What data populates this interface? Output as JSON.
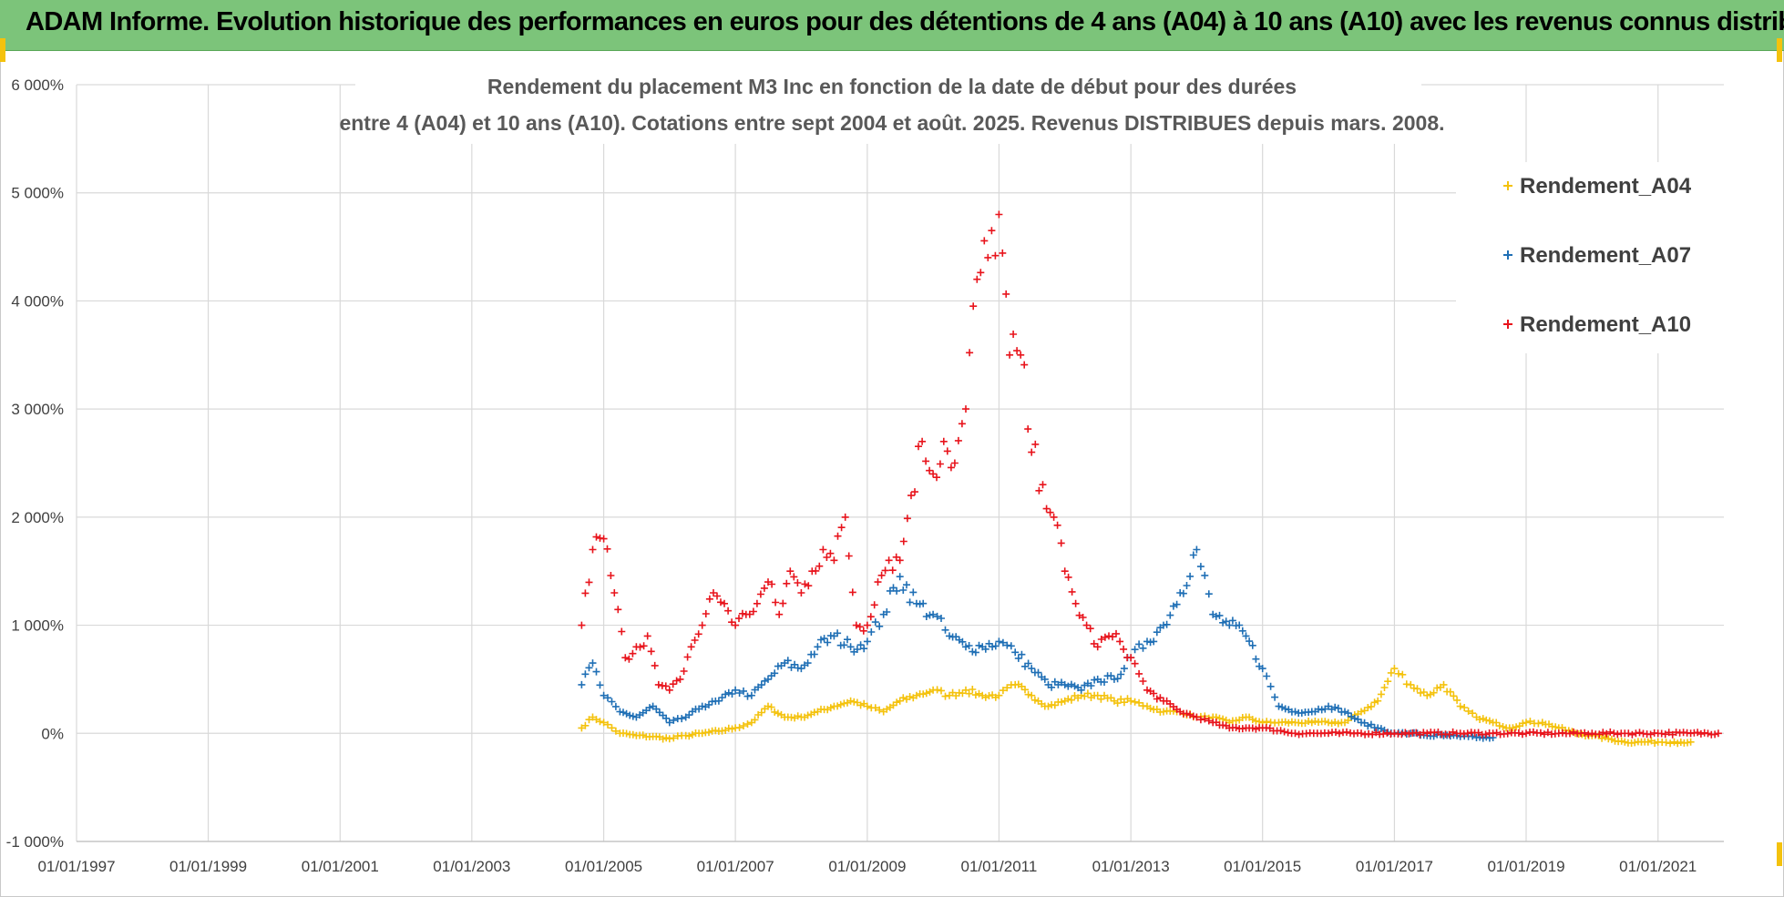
{
  "banner": {
    "title": "ADAM Informe. Evolution historique des performances en euros pour des détentions de 4 ans (A04) à 10 ans (A10) avec les revenus connus distribués"
  },
  "colors": {
    "banner": "#7cc47a",
    "A04": "#f4c20d",
    "A07": "#1f6fb5",
    "A10": "#e8141c",
    "grid": "#d9d9d9"
  },
  "chart_data": {
    "type": "scatter",
    "title": [
      "Rendement du placement M3 Inc en fonction de la date de début pour des durées",
      "entre 4 (A04) et 10 ans (A10). Cotations entre sept 2004 et août. 2025. Revenus DISTRIBUES depuis mars. 2008."
    ],
    "xlabel": "",
    "ylabel": "",
    "x_range": [
      "1997-01-01",
      "2022-01-01"
    ],
    "x_ticks": [
      "01/01/1997",
      "01/01/1999",
      "01/01/2001",
      "01/01/2003",
      "01/01/2005",
      "01/01/2007",
      "01/01/2009",
      "01/01/2011",
      "01/01/2013",
      "01/01/2015",
      "01/01/2017",
      "01/01/2019",
      "01/01/2021"
    ],
    "ylim": [
      -1000,
      6000
    ],
    "y_ticks": [
      "-1 000%",
      "0%",
      "1 000%",
      "2 000%",
      "3 000%",
      "4 000%",
      "5 000%",
      "6 000%"
    ],
    "grid": true,
    "marker": "+",
    "legend": {
      "placement": "right",
      "entries": [
        "Rendement_A04",
        "Rendement_A07",
        "Rendement_A10"
      ]
    },
    "series": [
      {
        "name": "Rendement_A04",
        "x": [
          "2004-09-01",
          "2004-11-01",
          "2005-01-01",
          "2005-04-01",
          "2005-07-01",
          "2005-10-01",
          "2006-01-01",
          "2006-04-01",
          "2006-07-01",
          "2006-10-01",
          "2007-01-01",
          "2007-04-01",
          "2007-07-01",
          "2007-10-01",
          "2008-01-01",
          "2008-04-01",
          "2008-07-01",
          "2008-10-01",
          "2009-01-01",
          "2009-04-01",
          "2009-07-01",
          "2009-10-01",
          "2010-01-01",
          "2010-04-01",
          "2010-07-01",
          "2010-10-01",
          "2011-01-01",
          "2011-04-01",
          "2011-07-01",
          "2011-10-01",
          "2012-01-01",
          "2012-04-01",
          "2012-07-01",
          "2012-10-01",
          "2013-01-01",
          "2013-04-01",
          "2013-07-01",
          "2013-10-01",
          "2014-01-01",
          "2014-04-01",
          "2014-07-01",
          "2014-10-01",
          "2015-01-01",
          "2015-04-01",
          "2015-07-01",
          "2015-10-01",
          "2016-01-01",
          "2016-04-01",
          "2016-07-01",
          "2016-10-01",
          "2017-01-01",
          "2017-04-01",
          "2017-07-01",
          "2017-10-01",
          "2018-01-01",
          "2018-04-01",
          "2018-07-01",
          "2018-10-01",
          "2019-01-01",
          "2019-04-01",
          "2019-07-01",
          "2019-10-01",
          "2020-01-01",
          "2020-04-01",
          "2020-07-01",
          "2020-10-01",
          "2021-01-01",
          "2021-04-01",
          "2021-07-01"
        ],
        "values": [
          50,
          150,
          100,
          0,
          -20,
          -30,
          -50,
          -20,
          0,
          20,
          50,
          100,
          250,
          150,
          150,
          200,
          250,
          300,
          250,
          200,
          300,
          350,
          400,
          350,
          400,
          350,
          350,
          450,
          350,
          250,
          300,
          350,
          350,
          300,
          300,
          250,
          200,
          200,
          150,
          150,
          100,
          150,
          100,
          100,
          100,
          100,
          100,
          100,
          200,
          300,
          600,
          450,
          350,
          450,
          250,
          150,
          100,
          50,
          100,
          100,
          50,
          0,
          -20,
          -50,
          -80,
          -80,
          -80,
          -80,
          -80
        ]
      },
      {
        "name": "Rendement_A07",
        "x": [
          "2004-09-01",
          "2004-11-01",
          "2005-01-01",
          "2005-04-01",
          "2005-07-01",
          "2005-10-01",
          "2006-01-01",
          "2006-04-01",
          "2006-07-01",
          "2006-10-01",
          "2007-01-01",
          "2007-04-01",
          "2007-07-01",
          "2007-10-01",
          "2008-01-01",
          "2008-04-01",
          "2008-07-01",
          "2008-10-01",
          "2009-01-01",
          "2009-04-01",
          "2009-07-01",
          "2009-10-01",
          "2010-01-01",
          "2010-04-01",
          "2010-07-01",
          "2010-10-01",
          "2011-01-01",
          "2011-04-01",
          "2011-07-01",
          "2011-10-01",
          "2012-01-01",
          "2012-04-01",
          "2012-07-01",
          "2012-10-01",
          "2013-01-01",
          "2013-04-01",
          "2013-07-01",
          "2013-10-01",
          "2014-01-01",
          "2014-04-01",
          "2014-07-01",
          "2014-10-01",
          "2015-01-01",
          "2015-04-01",
          "2015-07-01",
          "2015-10-01",
          "2016-01-01",
          "2016-04-01",
          "2016-07-01",
          "2016-10-01",
          "2017-01-01",
          "2017-04-01",
          "2017-07-01",
          "2017-10-01",
          "2018-01-01",
          "2018-04-01",
          "2018-07-01"
        ],
        "values": [
          450,
          650,
          350,
          200,
          150,
          250,
          100,
          150,
          250,
          300,
          400,
          350,
          500,
          650,
          600,
          800,
          900,
          800,
          850,
          1100,
          1450,
          1200,
          1100,
          900,
          800,
          800,
          850,
          750,
          600,
          450,
          450,
          400,
          500,
          500,
          700,
          850,
          1000,
          1300,
          1700,
          1100,
          1000,
          900,
          600,
          250,
          200,
          200,
          250,
          200,
          100,
          50,
          0,
          0,
          -20,
          -20,
          -30,
          -40,
          -40
        ]
      },
      {
        "name": "Rendement_A10",
        "x": [
          "2004-09-01",
          "2004-11-01",
          "2005-01-01",
          "2005-03-01",
          "2005-05-01",
          "2005-07-01",
          "2005-09-01",
          "2005-11-01",
          "2006-01-01",
          "2006-03-01",
          "2006-05-01",
          "2006-07-01",
          "2006-09-01",
          "2006-11-01",
          "2007-01-01",
          "2007-03-01",
          "2007-05-01",
          "2007-07-01",
          "2007-09-01",
          "2007-11-01",
          "2008-01-01",
          "2008-03-01",
          "2008-05-01",
          "2008-07-01",
          "2008-09-01",
          "2008-11-01",
          "2009-01-01",
          "2009-03-01",
          "2009-05-01",
          "2009-07-01",
          "2009-09-01",
          "2009-11-01",
          "2010-01-01",
          "2010-03-01",
          "2010-05-01",
          "2010-07-01",
          "2010-09-01",
          "2010-11-01",
          "2011-01-01",
          "2011-03-01",
          "2011-05-01",
          "2011-07-01",
          "2011-09-01",
          "2011-11-01",
          "2012-01-01",
          "2012-03-01",
          "2012-05-01",
          "2012-07-01",
          "2012-09-01",
          "2012-11-01",
          "2013-01-01",
          "2013-04-01",
          "2013-07-01",
          "2013-10-01",
          "2014-01-01",
          "2014-04-01",
          "2014-07-01",
          "2014-10-01",
          "2015-01-01",
          "2015-07-01",
          "2016-01-01",
          "2016-07-01",
          "2017-01-01",
          "2017-07-01",
          "2018-01-01",
          "2018-07-01",
          "2019-01-01",
          "2019-07-01",
          "2020-01-01",
          "2020-07-01",
          "2021-01-01",
          "2021-07-01",
          "2021-12-01"
        ],
        "values": [
          1000,
          1700,
          1800,
          1300,
          700,
          800,
          900,
          450,
          400,
          500,
          800,
          1000,
          1300,
          1200,
          1000,
          1100,
          1200,
          1400,
          1100,
          1500,
          1300,
          1500,
          1700,
          1600,
          2000,
          1000,
          1000,
          1400,
          1600,
          1600,
          2200,
          2700,
          2400,
          2700,
          2500,
          3000,
          4200,
          4400,
          4800,
          3500,
          3500,
          2600,
          2300,
          2000,
          1500,
          1200,
          1000,
          800,
          900,
          850,
          700,
          400,
          300,
          200,
          150,
          100,
          50,
          50,
          50,
          0,
          0,
          0,
          0,
          0,
          0,
          0,
          0,
          0,
          0,
          0,
          0,
          0,
          0
        ]
      }
    ]
  }
}
